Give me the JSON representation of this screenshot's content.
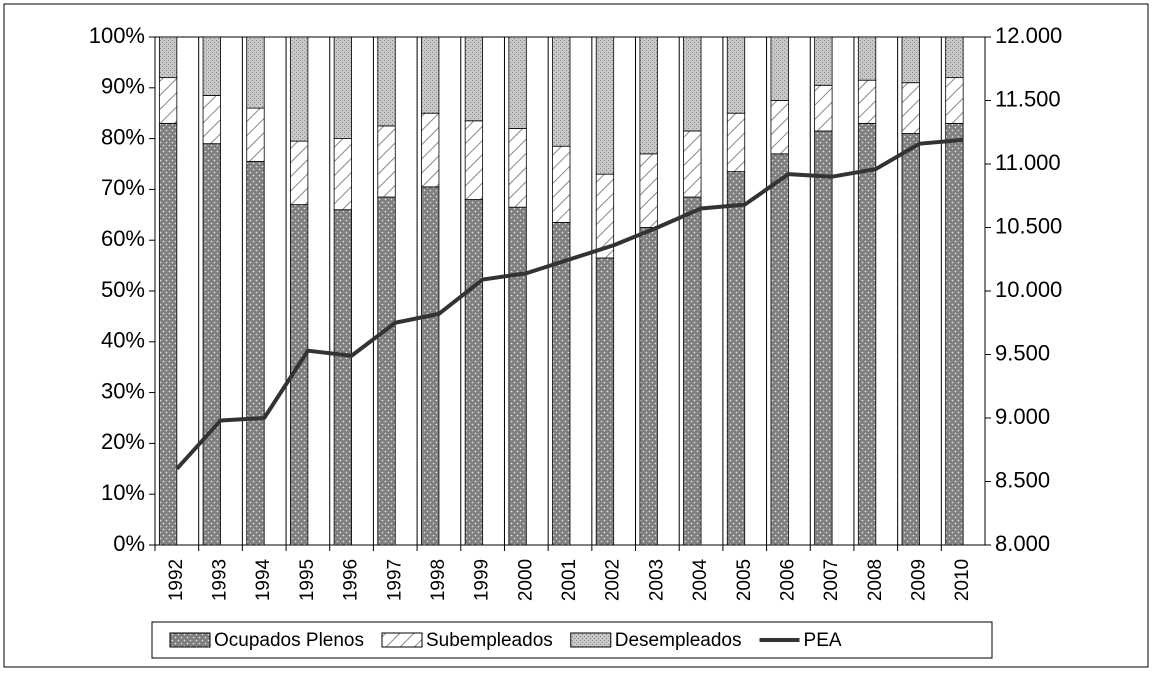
{
  "chart_data": {
    "type": "stacked-bar-line",
    "categories": [
      "1992",
      "1993",
      "1994",
      "1995",
      "1996",
      "1997",
      "1998",
      "1999",
      "2000",
      "2001",
      "2002",
      "2003",
      "2004",
      "2005",
      "2006",
      "2007",
      "2008",
      "2009",
      "2010"
    ],
    "series": [
      {
        "name": "Ocupados Plenos",
        "color": "#808080",
        "values": [
          83,
          79,
          75.5,
          67,
          66,
          68.5,
          70.5,
          68,
          66.5,
          63.5,
          56.5,
          62.5,
          68.5,
          73.5,
          77,
          81.5,
          83,
          81,
          83
        ]
      },
      {
        "name": "Subempleados",
        "color": "#ffffff",
        "values": [
          9,
          9.5,
          10.5,
          12.5,
          14,
          14,
          14.5,
          15.5,
          15.5,
          15,
          16.5,
          14.5,
          13,
          11.5,
          10.5,
          9,
          8.5,
          10,
          9
        ]
      },
      {
        "name": "Desempleados",
        "color": "#c8c8c8",
        "values": [
          8,
          11.5,
          14,
          20.5,
          20,
          17.5,
          15,
          16.5,
          18,
          21.5,
          27,
          23,
          18.5,
          15,
          12.5,
          9.5,
          8.5,
          9,
          8
        ]
      },
      {
        "name": "PEA",
        "color": "#333333",
        "type": "line",
        "axis": "y2",
        "values": [
          8600,
          8980,
          9000,
          9530,
          9490,
          9750,
          9820,
          10090,
          10140,
          10250,
          10360,
          10500,
          10650,
          10680,
          10920,
          10900,
          10960,
          11160,
          11190
        ]
      }
    ],
    "ylim": [
      0,
      100
    ],
    "yticks": [
      {
        "value": 0,
        "label": "0%"
      },
      {
        "value": 10,
        "label": "10%"
      },
      {
        "value": 20,
        "label": "20%"
      },
      {
        "value": 30,
        "label": "30%"
      },
      {
        "value": 40,
        "label": "40%"
      },
      {
        "value": 50,
        "label": "50%"
      },
      {
        "value": 60,
        "label": "60%"
      },
      {
        "value": 70,
        "label": "70%"
      },
      {
        "value": 80,
        "label": "80%"
      },
      {
        "value": 90,
        "label": "90%"
      },
      {
        "value": 100,
        "label": "100%"
      }
    ],
    "y2lim": [
      8000,
      12000
    ],
    "y2ticks": [
      {
        "value": 8000,
        "label": "8.000"
      },
      {
        "value": 8500,
        "label": "8.500"
      },
      {
        "value": 9000,
        "label": "9.000"
      },
      {
        "value": 9500,
        "label": "9.500"
      },
      {
        "value": 10000,
        "label": "10.000"
      },
      {
        "value": 10500,
        "label": "10.500"
      },
      {
        "value": 11000,
        "label": "11.000"
      },
      {
        "value": 11500,
        "label": "11.500"
      },
      {
        "value": 12000,
        "label": "12.000"
      }
    ],
    "legend": "bottom"
  }
}
